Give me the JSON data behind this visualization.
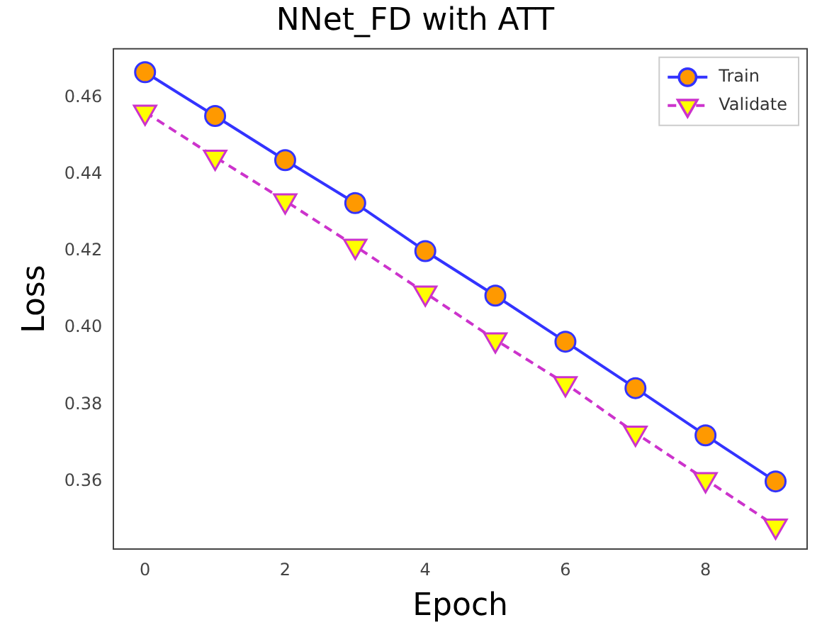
{
  "chart_data": {
    "type": "line",
    "title": "NNet_FD with ATT",
    "xlabel": "Epoch",
    "ylabel": "Loss",
    "x": [
      0,
      1,
      2,
      3,
      4,
      5,
      6,
      7,
      8,
      9
    ],
    "series": [
      {
        "name": "Train",
        "color": "#3333ff",
        "colors": [
          "#ff9900",
          "#ff9900",
          "#ff9900",
          "#ff9900",
          "#ff9900",
          "#ff9900",
          "#ff9900",
          "#ff9900",
          "#ff9900",
          "#ff9900"
        ],
        "marker": "circle",
        "line_style": "solid",
        "values": [
          0.4666,
          0.4552,
          0.4437,
          0.4325,
          0.42,
          0.4084,
          0.3964,
          0.3843,
          0.372,
          0.36
        ]
      },
      {
        "name": "Validate",
        "color": "#cc33cc",
        "colors": [
          "#ffff00",
          "#ffff00",
          "#ffff00",
          "#ffff00",
          "#ffff00",
          "#ffff00",
          "#ffff00",
          "#ffff00",
          "#ffff00",
          "#ffff00"
        ],
        "marker": "triangle",
        "line_style": "dashed",
        "values": [
          0.4562,
          0.4445,
          0.4331,
          0.4213,
          0.4091,
          0.3969,
          0.3855,
          0.3726,
          0.3605,
          0.3484
        ]
      }
    ],
    "xlim": [
      -0.45,
      9.45
    ],
    "xticks": [
      0,
      2,
      4,
      6,
      8
    ],
    "ylim": [
      0.3423,
      0.4727
    ],
    "yticks": [
      {
        "value": 0.36,
        "label": "0.36"
      },
      {
        "value": 0.38,
        "label": "0.38"
      },
      {
        "value": 0.4,
        "label": "0.40"
      },
      {
        "value": 0.42,
        "label": "0.42"
      },
      {
        "value": 0.44,
        "label": "0.44"
      },
      {
        "value": 0.46,
        "label": "0.46"
      }
    ],
    "grid": false,
    "legend": "top right"
  }
}
